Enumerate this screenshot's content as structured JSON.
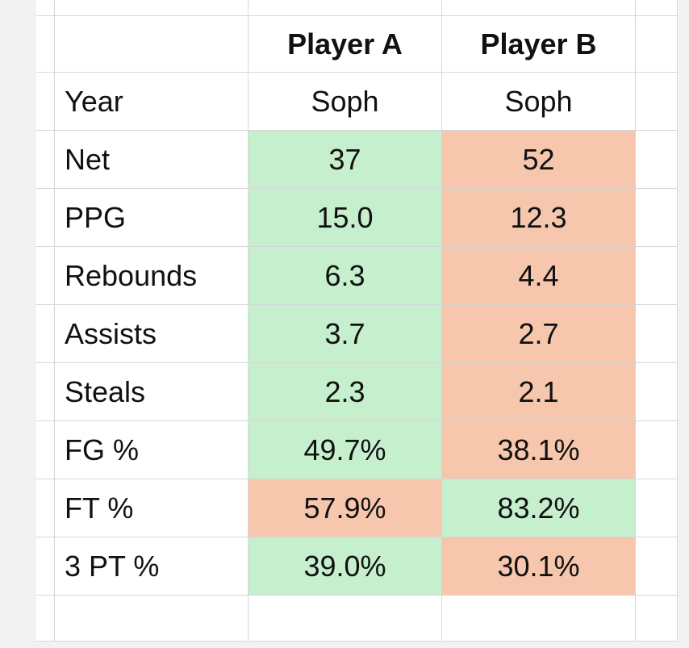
{
  "table": {
    "columns": [
      "Player A",
      "Player B"
    ],
    "rows": [
      {
        "label": "Year",
        "values": [
          "Soph",
          "Soph"
        ]
      },
      {
        "label": "Net",
        "values": [
          "37",
          "52"
        ],
        "colors": [
          "#c6efce",
          "#f6c6ad"
        ]
      },
      {
        "label": "PPG",
        "values": [
          "15.0",
          "12.3"
        ],
        "colors": [
          "#c6efce",
          "#f6c6ad"
        ]
      },
      {
        "label": "Rebounds",
        "values": [
          "6.3",
          "4.4"
        ],
        "colors": [
          "#c6efce",
          "#f6c6ad"
        ]
      },
      {
        "label": "Assists",
        "values": [
          "3.7",
          "2.7"
        ],
        "colors": [
          "#c6efce",
          "#f6c6ad"
        ]
      },
      {
        "label": "Steals",
        "values": [
          "2.3",
          "2.1"
        ],
        "colors": [
          "#c6efce",
          "#f6c6ad"
        ]
      },
      {
        "label": "FG %",
        "values": [
          "49.7%",
          "38.1%"
        ],
        "colors": [
          "#c6efce",
          "#f6c6ad"
        ]
      },
      {
        "label": "FT %",
        "values": [
          "57.9%",
          "83.2%"
        ],
        "colors": [
          "#f6c6ad",
          "#c6efce"
        ]
      },
      {
        "label": "3 PT %",
        "values": [
          "39.0%",
          "30.1%"
        ],
        "colors": [
          "#c6efce",
          "#f6c6ad"
        ]
      }
    ]
  }
}
